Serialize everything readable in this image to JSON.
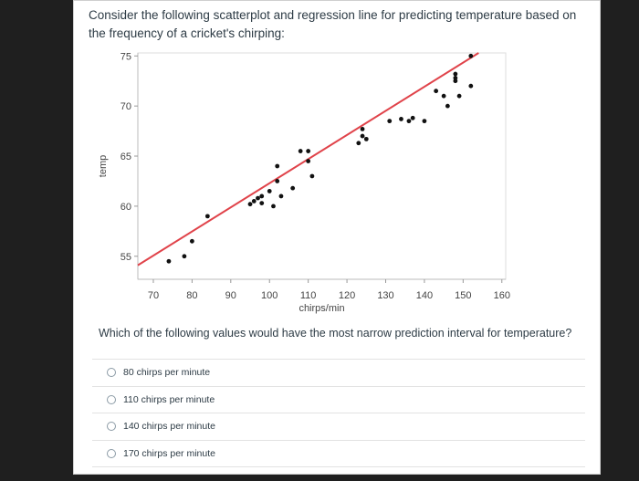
{
  "question": {
    "intro": "Consider the following scatterplot and regression line for predicting temperature based on the frequency of a cricket's chirping:",
    "prompt": "Which of the following values would have the most narrow prediction interval for temperature?",
    "options": [
      {
        "label": "80 chirps per minute"
      },
      {
        "label": "110 chirps per minute"
      },
      {
        "label": "140 chirps per minute"
      },
      {
        "label": "170 chirps per minute"
      }
    ]
  },
  "chart_data": {
    "type": "scatter",
    "xlabel": "chirps/min",
    "ylabel": "temp",
    "xlim": [
      66,
      161
    ],
    "ylim": [
      52.7,
      75.3
    ],
    "x_ticks": [
      70,
      80,
      90,
      100,
      110,
      120,
      130,
      140,
      150,
      160
    ],
    "y_ticks": [
      55,
      60,
      65,
      70,
      75
    ],
    "grid": false,
    "points": [
      {
        "x": 74,
        "y": 54.5
      },
      {
        "x": 78,
        "y": 55.0
      },
      {
        "x": 80,
        "y": 56.5
      },
      {
        "x": 84,
        "y": 59.0
      },
      {
        "x": 95,
        "y": 60.2
      },
      {
        "x": 96,
        "y": 60.5
      },
      {
        "x": 97,
        "y": 60.8
      },
      {
        "x": 98,
        "y": 61.0
      },
      {
        "x": 98,
        "y": 60.3
      },
      {
        "x": 100,
        "y": 61.5
      },
      {
        "x": 101,
        "y": 60.0
      },
      {
        "x": 103,
        "y": 61.0
      },
      {
        "x": 102,
        "y": 62.5
      },
      {
        "x": 106,
        "y": 61.8
      },
      {
        "x": 102,
        "y": 64.0
      },
      {
        "x": 108,
        "y": 65.5
      },
      {
        "x": 110,
        "y": 65.5
      },
      {
        "x": 110,
        "y": 64.5
      },
      {
        "x": 111,
        "y": 63.0
      },
      {
        "x": 123,
        "y": 66.3
      },
      {
        "x": 124,
        "y": 67.0
      },
      {
        "x": 125,
        "y": 66.7
      },
      {
        "x": 124,
        "y": 67.7
      },
      {
        "x": 131,
        "y": 68.5
      },
      {
        "x": 134,
        "y": 68.7
      },
      {
        "x": 136,
        "y": 68.5
      },
      {
        "x": 137,
        "y": 68.8
      },
      {
        "x": 140,
        "y": 68.5
      },
      {
        "x": 143,
        "y": 71.5
      },
      {
        "x": 145,
        "y": 71.0
      },
      {
        "x": 148,
        "y": 72.5
      },
      {
        "x": 148,
        "y": 72.8
      },
      {
        "x": 148,
        "y": 73.2
      },
      {
        "x": 149,
        "y": 71.0
      },
      {
        "x": 152,
        "y": 72.0
      },
      {
        "x": 152,
        "y": 75.0
      },
      {
        "x": 146,
        "y": 70.0
      }
    ],
    "regression": {
      "x": [
        66,
        154
      ],
      "y": [
        54.1,
        75.3
      ],
      "color": "#e0434a"
    }
  }
}
